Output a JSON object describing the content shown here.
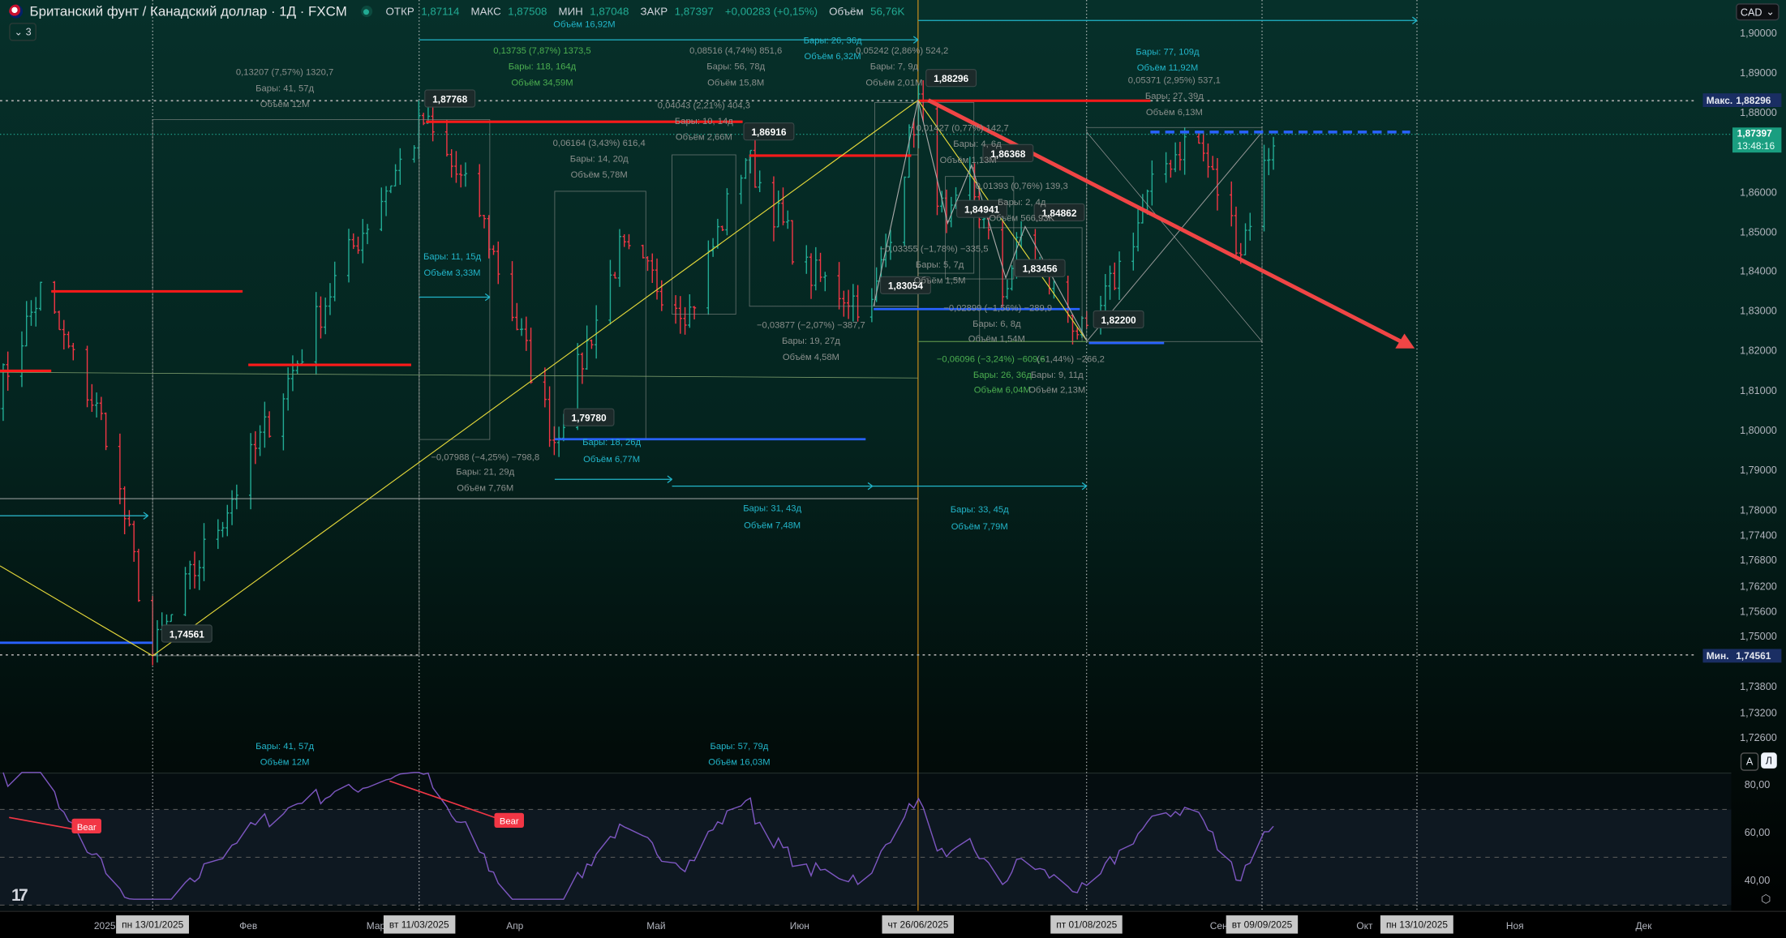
{
  "header": {
    "title": "Британский фунт / Канадский доллар · 1Д · FXCM",
    "open_label": "ОТКР",
    "open": "1,87114",
    "high_label": "МАКС",
    "high": "1,87508",
    "low_label": "МИН",
    "low": "1,87048",
    "close_label": "ЗАКР",
    "close": "1,87397",
    "change": "+0,00283 (+0,15%)",
    "volume_label": "Объём",
    "volume": "56,76K",
    "indicators_toggle": "3"
  },
  "price_axis": {
    "currency": "CAD",
    "ticks": [
      "1,90000",
      "1,89000",
      "1,88000",
      "1,86000",
      "1,85000",
      "1,84000",
      "1,83000",
      "1,82000",
      "1,81000",
      "1,80000",
      "1,79000",
      "1,78000",
      "1,77400",
      "1,76800",
      "1,76200",
      "1,75600",
      "1,75000",
      "1,73800",
      "1,73200",
      "1,72600"
    ],
    "max_label": "Макс.",
    "max_value": "1,88296",
    "min_label": "Мин.",
    "min_value": "1,74561",
    "last_price": "1,87397",
    "countdown": "13:48:16",
    "auto_button": "A",
    "log_button": "Л"
  },
  "rsi_axis": {
    "ticks": [
      "80,00",
      "60,00",
      "40,00"
    ],
    "bear_label": "Bear"
  },
  "time_axis": {
    "months": [
      "2025",
      "Фев",
      "Мар",
      "Апр",
      "Май",
      "Июн",
      "Сен",
      "Окт",
      "Ноя",
      "Дек"
    ],
    "highlighted_dates": [
      "пн 13/01/2025",
      "вт 11/03/2025",
      "чт 26/06/2025",
      "пт 01/08/2025",
      "вт 09/09/2025",
      "пн 13/10/2025"
    ]
  },
  "price_labels": [
    "1,87768",
    "1,86916",
    "1,88296",
    "1,86368",
    "1,84941",
    "1,84862",
    "1,83456",
    "1,83054",
    "1,82200",
    "1,79780",
    "1,74561"
  ],
  "annotations": [
    "Объём 16,92M",
    "0,13735 (7,87%) 1373,5",
    "Бары: 118, 164д",
    "Объём 34,59M",
    "0,13207 (7,57%) 1320,7",
    "Бары: 41, 57д",
    "Объём 12M",
    "0,08516 (4,74%) 851,6",
    "Бары: 56, 78д",
    "Объём 15,8M",
    "Бары: 26, 36д",
    "Объём 6,32M",
    "0,05242 (2,86%) 524,2",
    "Бары: 7, 9д",
    "Объём 2,01M",
    "Бары: 77, 109д",
    "Объём 11,92M",
    "0,05371 (2,95%) 537,1",
    "Бары: 27, 39д",
    "Объём 6,13M",
    "0,04043 (2,21%) 404,3",
    "Бары: 10, 14д",
    "Объём 2,66M",
    "0,06164 (3,43%) 616,4",
    "Бары: 14, 20д",
    "Объём 5,78M",
    "0,01427 (0,77%) 142,7",
    "Бары: 4, 6д",
    "Объём 1,13M",
    "0,01393 (0,76%) 139,3",
    "Бары: 2, 4д",
    "Объём 566,93K",
    "−0,03355 (−1,78%) −335,5",
    "Бары: 5, 7д",
    "Объём 1,5M",
    "−0,02899 (−1,56%) −289,9",
    "Бары: 6, 8д",
    "Объём 1,54M",
    "−0,03877 (−2,07%) −387,7",
    "Бары: 19, 27д",
    "Объём 4,58M",
    "−0,06096 (−3,24%) −609,6",
    "Бары: 26, 36д",
    "Объём 6,04M",
    "(−1,44%) −266,2",
    "Бары: 9, 11д",
    "Объём 2,13M",
    "Бары: 11, 15д",
    "Объём 3,33M",
    "Бары: 18, 26д",
    "Объём 6,77M",
    "−0,07988 (−4,25%) −798,8",
    "Бары: 21, 29д",
    "Объём 7,76M",
    "Бары: 31, 43д",
    "Объём 7,48M",
    "Бары: 33, 45д",
    "Объём 7,79M",
    "Бары: 41, 57д",
    "Объём 12M",
    "Бары: 57, 79д",
    "Объём 16,03M"
  ],
  "chart_data": {
    "type": "candlestick",
    "symbol": "GBPCAD",
    "interval": "1D",
    "price_pivots": [
      [
        "2024-12-11",
        1.81
      ],
      [
        "2024-12-20",
        1.835
      ],
      [
        "2025-01-03",
        1.8
      ],
      [
        "2025-01-13",
        1.74561
      ],
      [
        "2025-02-02",
        1.79
      ],
      [
        "2025-02-22",
        1.84
      ],
      [
        "2025-03-12",
        1.87768
      ],
      [
        "2025-03-24",
        1.855
      ],
      [
        "2025-04-09",
        1.7978
      ],
      [
        "2025-04-23",
        1.845
      ],
      [
        "2025-05-08",
        1.83
      ],
      [
        "2025-05-20",
        1.86916
      ],
      [
        "2025-06-02",
        1.84
      ],
      [
        "2025-06-16",
        1.83054
      ],
      [
        "2025-06-26",
        1.88296
      ],
      [
        "2025-07-02",
        1.84941
      ],
      [
        "2025-07-07",
        1.86368
      ],
      [
        "2025-07-14",
        1.83456
      ],
      [
        "2025-07-18",
        1.84862
      ],
      [
        "2025-08-01",
        1.822
      ],
      [
        "2025-08-17",
        1.866
      ],
      [
        "2025-08-24",
        1.875
      ],
      [
        "2025-09-03",
        1.846
      ],
      [
        "2025-09-10",
        1.87397
      ]
    ],
    "indicator": "RSI",
    "rsi_levels": [
      70,
      50,
      30
    ],
    "colors": {
      "up": "#22ab94",
      "down": "#f23645",
      "rsi": "#7e57c2",
      "trend_arrow": "#f04545",
      "support": "#2962ff",
      "resistance": "#ff1a1a",
      "fib": "#e6d93a"
    }
  }
}
